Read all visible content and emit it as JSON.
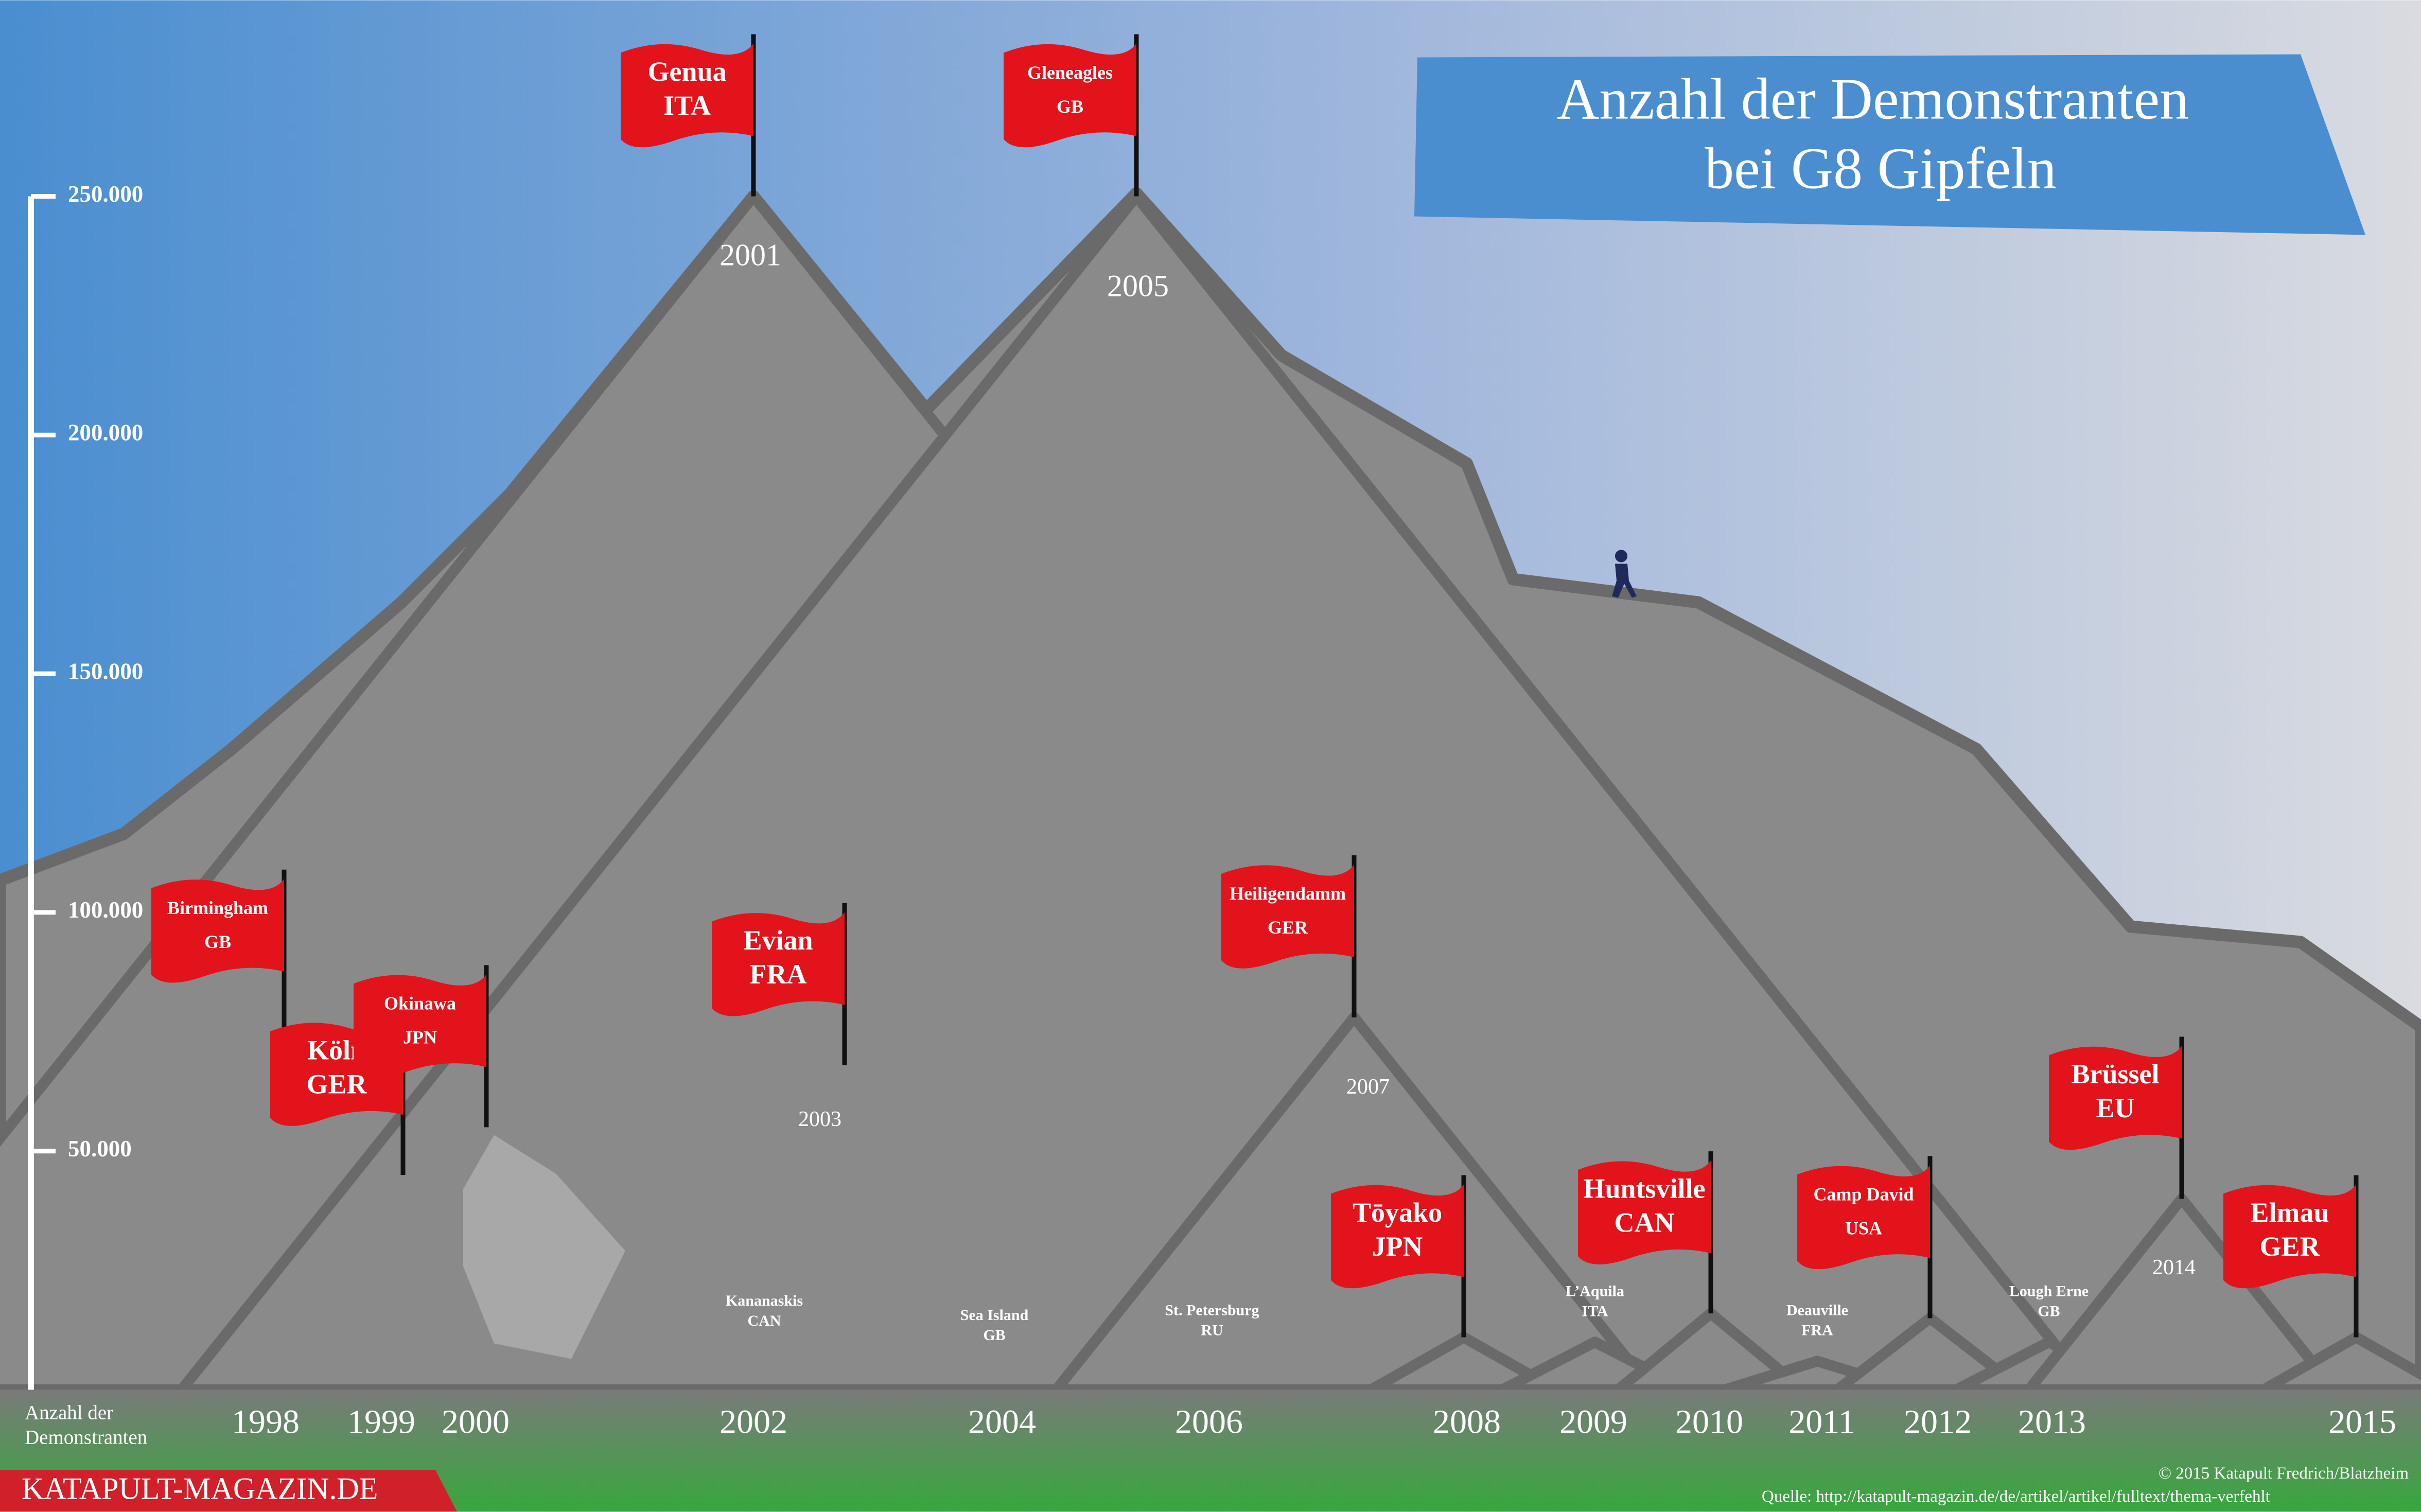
{
  "chart_data": {
    "type": "mountain",
    "title": [
      "Anzahl der Demonstranten",
      "bei G8 Gipfeln"
    ],
    "y_axis_label": [
      "Anzahl der",
      "Demonstranten"
    ],
    "ylim": [
      0,
      250000
    ],
    "yticks": [
      {
        "value": 50000,
        "label": "50.000"
      },
      {
        "value": 100000,
        "label": "100.000"
      },
      {
        "value": 150000,
        "label": "150.000"
      },
      {
        "value": 200000,
        "label": "200.000"
      },
      {
        "value": 250000,
        "label": "250.000"
      }
    ],
    "categories": [
      "1998",
      "1999",
      "2000",
      "2001",
      "2002",
      "2003",
      "2004",
      "2005",
      "2006",
      "2007",
      "2008",
      "2009",
      "2010",
      "2011",
      "2012",
      "2013",
      "2014",
      "2015"
    ],
    "labels": [
      [
        "Birmingham",
        "GB"
      ],
      [
        "Köln",
        "GER"
      ],
      [
        "Okinawa",
        "JPN"
      ],
      [
        "Genua",
        "ITA"
      ],
      [
        "Kananaskis",
        "CAN"
      ],
      [
        "Evian",
        "FRA"
      ],
      [
        "Sea Island",
        "GB"
      ],
      [
        "Gleneagles",
        "GB"
      ],
      [
        "St. Petersburg",
        "RU"
      ],
      [
        "Heiligendamm",
        "GER"
      ],
      [
        "Tōyako",
        "JPN"
      ],
      [
        "L’Aquila",
        "ITA"
      ],
      [
        "Huntsville",
        "CAN"
      ],
      [
        "Deauville",
        "FRA"
      ],
      [
        "Camp David",
        "USA"
      ],
      [
        "Lough Erne",
        "GB"
      ],
      [
        "Brüssel",
        "EU"
      ],
      [
        "Elmau",
        "GER"
      ]
    ],
    "values": [
      75000,
      45000,
      55000,
      250000,
      8000,
      68000,
      5000,
      250000,
      6000,
      78000,
      11000,
      10000,
      16000,
      6000,
      15000,
      10000,
      40000,
      11000
    ],
    "color": "#8a8a8a",
    "flag_color": "#e3131b",
    "brand": "KATAPULT-MAGAZIN.DE",
    "copyright": "© 2015 Katapult Fredrich/Blatzheim",
    "source": "Quelle: http://katapult-magazin.de/de/artikel/artikel/fulltext/thema-verfehlt"
  }
}
